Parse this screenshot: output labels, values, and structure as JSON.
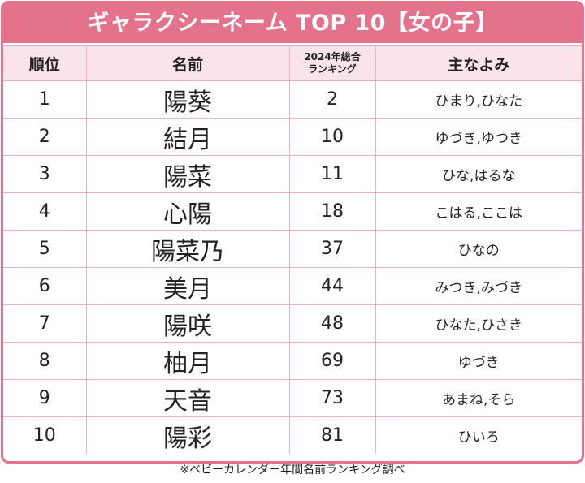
{
  "title": "ギャラクシーネーム TOP 10【女の子】",
  "table": {
    "header": [
      "順位",
      "名前",
      [
        "2024年総合",
        "ランキング"
      ],
      "主なよみ"
    ],
    "rows": [
      [
        1,
        "陽葵",
        2,
        "ひまり,ひなた"
      ],
      [
        2,
        "結月",
        10,
        "ゆづき,ゆつき"
      ],
      [
        3,
        "陽菜",
        11,
        "ひな,はるな"
      ],
      [
        4,
        "心陽",
        18,
        "こはる,ここは"
      ],
      [
        5,
        "陽菜乃",
        37,
        "ひなの"
      ],
      [
        6,
        "美月",
        44,
        "みつき,みづき"
      ],
      [
        7,
        "陽咲",
        48,
        "ひなた,ひさき"
      ],
      [
        8,
        "柚月",
        69,
        "ゆづき"
      ],
      [
        9,
        "天音",
        73,
        "あまね,そら"
      ],
      [
        10,
        "陽彩",
        81,
        "ひいろ"
      ]
    ]
  },
  "footnote": "※ベビーカレンダー年間名前ランキング調べ"
}
